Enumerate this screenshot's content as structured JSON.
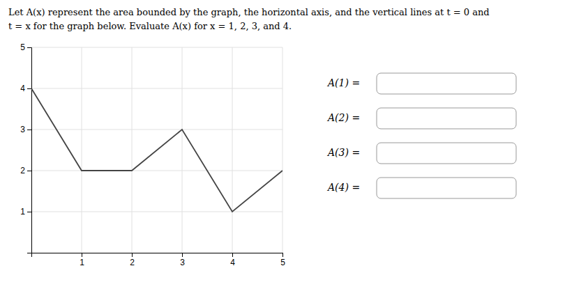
{
  "chart_data": {
    "type": "line",
    "title": "Let A(x) represent the area bounded by the graph, the horizontal axis, and the vertical lines at t = 0 and",
    "subtitle": "t = x for the graph below. Evaluate A(x) for x = 1, 2, 3, and 4.",
    "annotations": [
      "A(1) =",
      "A(2) =",
      "A(3) =",
      "A(4) ="
    ],
    "x": [
      0,
      1,
      2,
      3,
      4,
      5
    ],
    "values": [
      4,
      2,
      2,
      3,
      1,
      2
    ],
    "color": "#444444",
    "xlim": [
      0,
      5
    ],
    "ylim": [
      0,
      5
    ],
    "xticks": [
      1,
      2,
      3,
      4,
      5
    ],
    "yticks": [
      1,
      2,
      3,
      4,
      5
    ],
    "grid": true
  }
}
